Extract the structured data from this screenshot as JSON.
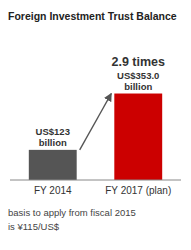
{
  "chart_data": {
    "type": "bar",
    "title": "Foreign Investment Trust Balance",
    "categories": [
      "FY 2014",
      "FY 2017 (plan)"
    ],
    "values": [
      123,
      353.0
    ],
    "value_labels": [
      "US$123\nbillion",
      "US$353.0\nbillion"
    ],
    "data_labels": true,
    "colors": [
      "#555555",
      "#cc0000"
    ],
    "ylim": [
      0,
      400
    ],
    "grid": false,
    "tick_labels": "x",
    "annotation": "2.9 times",
    "footnotes": [
      "basis to apply from fiscal 2015",
      "is ¥115/US$"
    ]
  }
}
